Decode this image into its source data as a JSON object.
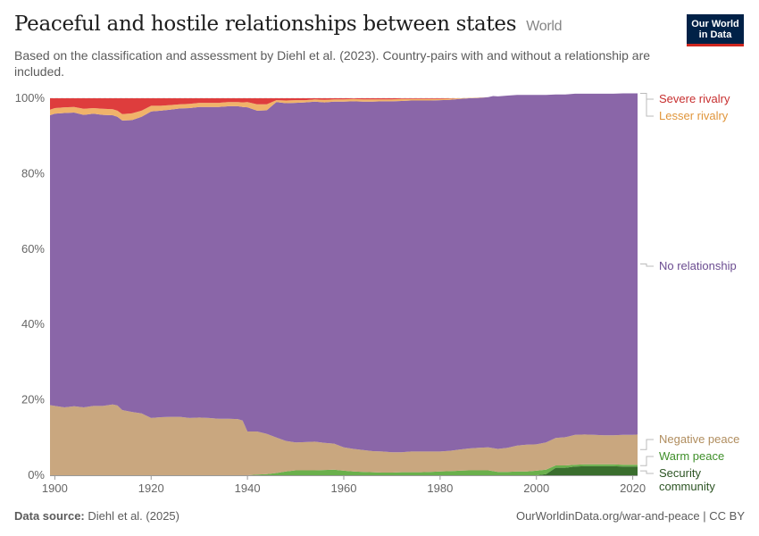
{
  "header": {
    "title": "Peaceful and hostile relationships between states",
    "entity": "World",
    "subtitle": "Based on the classification and assessment by Diehl et al. (2023). Country-pairs with and without a relationship are included.",
    "logo_line1": "Our World",
    "logo_line2": "in Data"
  },
  "footer": {
    "source_label": "Data source:",
    "source_text": "Diehl et al. (2025)",
    "url": "OurWorldinData.org/war-and-peace | CC BY"
  },
  "chart_data": {
    "type": "area",
    "stacked": "percent",
    "title": "Peaceful and hostile relationships between states",
    "xlabel": "",
    "ylabel": "",
    "xlim": [
      1899,
      2021
    ],
    "ylim": [
      0,
      100
    ],
    "x_ticks": [
      "1900",
      "1920",
      "1940",
      "1960",
      "1980",
      "2000",
      "2020"
    ],
    "y_ticks": [
      "0%",
      "20%",
      "40%",
      "60%",
      "80%",
      "100%"
    ],
    "x": [
      1899,
      1900,
      1902,
      1904,
      1906,
      1908,
      1910,
      1912,
      1913,
      1914,
      1916,
      1918,
      1920,
      1922,
      1924,
      1926,
      1928,
      1930,
      1932,
      1934,
      1936,
      1938,
      1939,
      1940,
      1942,
      1944,
      1946,
      1948,
      1950,
      1952,
      1954,
      1956,
      1958,
      1960,
      1962,
      1964,
      1966,
      1968,
      1970,
      1972,
      1974,
      1976,
      1978,
      1980,
      1982,
      1984,
      1986,
      1988,
      1990,
      1991,
      1992,
      1994,
      1996,
      1998,
      2000,
      2002,
      2004,
      2006,
      2008,
      2010,
      2012,
      2014,
      2016,
      2018,
      2020,
      2021
    ],
    "series": [
      {
        "name": "Security community",
        "color": "#3a6e2e",
        "values": [
          0,
          0,
          0,
          0,
          0,
          0,
          0,
          0,
          0,
          0,
          0,
          0,
          0,
          0,
          0,
          0,
          0,
          0,
          0,
          0,
          0,
          0,
          0,
          0,
          0,
          0,
          0,
          0,
          0,
          0,
          0,
          0,
          0,
          0,
          0,
          0,
          0,
          0,
          0,
          0,
          0,
          0,
          0,
          0,
          0,
          0,
          0,
          0,
          0,
          0,
          0,
          0,
          0,
          0,
          0,
          0.3,
          2.0,
          2.0,
          2.3,
          2.4,
          2.4,
          2.4,
          2.4,
          2.3,
          2.3,
          2.3
        ]
      },
      {
        "name": "Warm peace",
        "color": "#6ab04c",
        "values": [
          0,
          0,
          0,
          0,
          0,
          0,
          0,
          0,
          0,
          0,
          0,
          0,
          0,
          0,
          0,
          0,
          0,
          0,
          0,
          0,
          0,
          0,
          0,
          0,
          0.2,
          0.3,
          0.6,
          1.0,
          1.3,
          1.3,
          1.3,
          1.4,
          1.5,
          1.2,
          1.0,
          0.9,
          0.8,
          0.7,
          0.7,
          0.8,
          0.8,
          0.8,
          0.9,
          1.0,
          1.1,
          1.2,
          1.3,
          1.3,
          1.3,
          1.1,
          0.9,
          0.9,
          1.0,
          1.0,
          1.2,
          1.2,
          0.6,
          0.6,
          0.5,
          0.5,
          0.5,
          0.5,
          0.5,
          0.5,
          0.5,
          0.5
        ]
      },
      {
        "name": "Negative peace",
        "color": "#c9a77f",
        "values": [
          18.6,
          18.4,
          18.0,
          18.3,
          18.0,
          18.4,
          18.4,
          18.8,
          18.5,
          17.3,
          16.8,
          16.4,
          15.2,
          15.4,
          15.5,
          15.5,
          15.2,
          15.3,
          15.2,
          15.0,
          15.0,
          14.9,
          14.5,
          11.6,
          11.4,
          10.7,
          9.4,
          8.1,
          7.4,
          7.5,
          7.6,
          7.2,
          6.9,
          6.2,
          6.0,
          5.8,
          5.6,
          5.6,
          5.4,
          5.3,
          5.5,
          5.5,
          5.4,
          5.3,
          5.4,
          5.6,
          5.8,
          6.0,
          6.1,
          6.1,
          6.1,
          6.4,
          6.9,
          7.1,
          7.0,
          7.2,
          7.3,
          7.5,
          7.9,
          7.9,
          7.8,
          7.7,
          7.7,
          7.9,
          7.9,
          8.0
        ]
      },
      {
        "name": "No relationship",
        "color": "#8a66a8",
        "values": [
          76.9,
          77.5,
          78.1,
          77.9,
          77.6,
          77.5,
          77.2,
          76.7,
          76.6,
          76.8,
          77.4,
          78.7,
          81.3,
          81.3,
          81.5,
          81.8,
          82.2,
          82.4,
          82.5,
          82.7,
          82.9,
          83.0,
          83.2,
          86.0,
          85.1,
          85.8,
          89.0,
          89.6,
          90.1,
          90.1,
          90.2,
          90.3,
          90.7,
          91.7,
          92.2,
          92.4,
          92.7,
          92.9,
          93.1,
          93.2,
          93.1,
          93.1,
          93.1,
          93.2,
          93.1,
          93.0,
          92.9,
          92.8,
          92.9,
          93.4,
          93.5,
          93.4,
          93.0,
          92.8,
          92.7,
          92.2,
          91.1,
          90.9,
          90.5,
          90.4,
          90.5,
          90.6,
          90.6,
          90.6,
          90.6,
          90.5
        ]
      },
      {
        "name": "Lesser rivalry",
        "color": "#f0b36a",
        "values": [
          1.5,
          1.5,
          1.5,
          1.5,
          1.6,
          1.5,
          1.6,
          1.6,
          1.6,
          1.7,
          1.8,
          1.6,
          1.5,
          1.3,
          1.2,
          1.1,
          1.1,
          1.1,
          1.1,
          1.1,
          1.1,
          1.1,
          1.2,
          1.4,
          1.7,
          1.6,
          0.5,
          0.7,
          0.7,
          0.6,
          0.6,
          0.7,
          0.6,
          0.6,
          0.6,
          0.6,
          0.6,
          0.5,
          0.5,
          0.5,
          0.4,
          0.4,
          0.4,
          0.3,
          0.3,
          0.2,
          0.1,
          0.1,
          0.0,
          0.0,
          0.0,
          0.0,
          0.0,
          0.0,
          0.0,
          0.0,
          0.0,
          0.0,
          0.0,
          0.0,
          0.0,
          0.0,
          0.0,
          0.0,
          0.0,
          0.0
        ]
      },
      {
        "name": "Severe rivalry",
        "color": "#de3d3d",
        "values": [
          3.0,
          2.6,
          2.4,
          2.3,
          2.8,
          2.6,
          2.8,
          2.9,
          3.3,
          4.2,
          4.0,
          3.3,
          2.0,
          2.0,
          1.8,
          1.6,
          1.5,
          1.2,
          1.2,
          1.2,
          1.0,
          1.0,
          1.1,
          1.0,
          1.6,
          1.6,
          0.5,
          0.6,
          0.5,
          0.5,
          0.3,
          0.4,
          0.3,
          0.3,
          0.2,
          0.3,
          0.3,
          0.3,
          0.3,
          0.2,
          0.2,
          0.2,
          0.2,
          0.2,
          0.1,
          0.0,
          0.0,
          0.0,
          0.0,
          0.0,
          0.0,
          0.0,
          0.0,
          0.0,
          0.0,
          0.0,
          0.0,
          0.0,
          0.0,
          0.0,
          0.0,
          0.0,
          0.0,
          0.0,
          0.0,
          0.0
        ]
      }
    ],
    "legend_placement": "right",
    "grid": "horizontal dashed"
  }
}
